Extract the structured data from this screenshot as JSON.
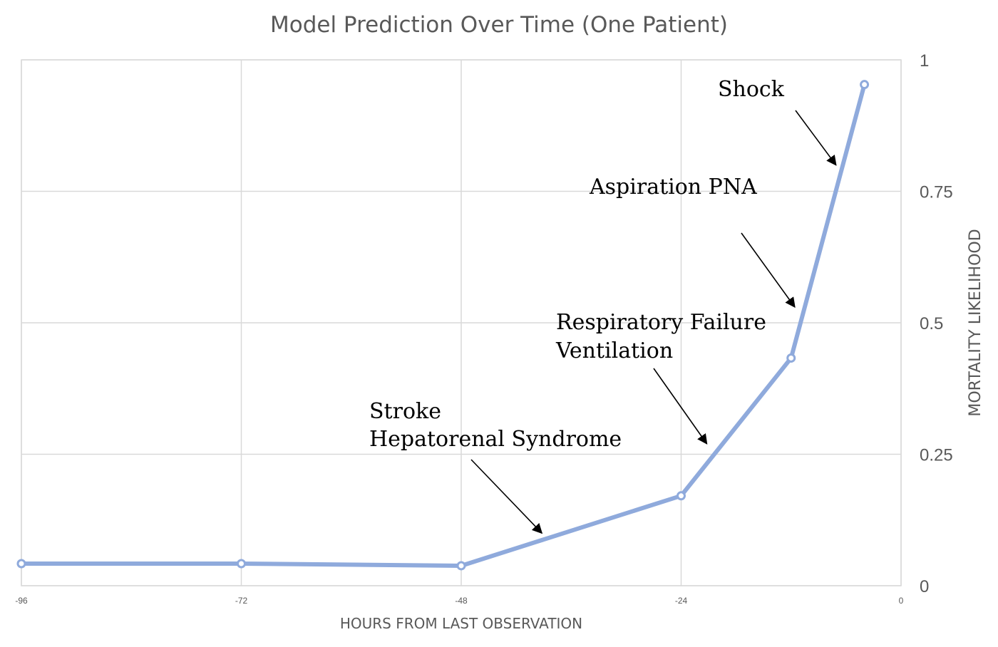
{
  "chart_data": {
    "type": "line",
    "title": "Model Prediction Over Time (One Patient)",
    "xlabel": "HOURS FROM LAST OBSERVATION",
    "ylabel": "MORTALITY LIKELIHOOD",
    "xlim": [
      -96,
      0
    ],
    "ylim": [
      0,
      1
    ],
    "x_ticks": [
      -96,
      -72,
      -48,
      -24,
      0
    ],
    "y_ticks": [
      0,
      0.25,
      0.5,
      0.75,
      1
    ],
    "y_tick_labels": [
      "0",
      "0.25",
      "0.5",
      "0.75",
      "1"
    ],
    "y_axis_side": "right",
    "grid": true,
    "legend": "none",
    "series": [
      {
        "color": "#8faadc",
        "x": [
          -96,
          -72,
          -48,
          -24,
          -12,
          -4
        ],
        "y": [
          0.042,
          0.042,
          0.038,
          0.171,
          0.433,
          0.953
        ]
      }
    ],
    "annotations": [
      {
        "id": "stroke",
        "lines": [
          "Stroke",
          "Hepatorenal Syndrome"
        ],
        "arrow_to": {
          "x": -39.2,
          "y": 0.1
        }
      },
      {
        "id": "respiratory",
        "lines": [
          "Respiratory Failure",
          "Ventilation"
        ],
        "arrow_to": {
          "x": -21.2,
          "y": 0.27
        }
      },
      {
        "id": "aspiration",
        "lines": [
          "Aspiration PNA"
        ],
        "arrow_to": {
          "x": -11.6,
          "y": 0.53
        }
      },
      {
        "id": "shock",
        "lines": [
          "Shock"
        ],
        "arrow_to": {
          "x": -7.1,
          "y": 0.8
        }
      }
    ]
  }
}
